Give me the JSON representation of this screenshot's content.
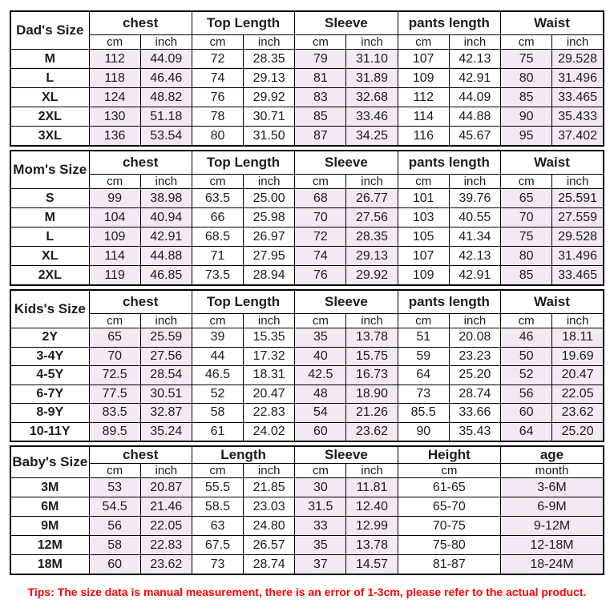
{
  "colors": {
    "shade": "#F3E8F3",
    "border": "#000000",
    "tips_text": "#FF0000"
  },
  "tips": "Tips: The size data is manual measurement, there is an error of 1-3cm, please refer to the actual product.",
  "sections": [
    {
      "label": "Dad's Size",
      "columns": [
        {
          "name": "chest",
          "sub": [
            "cm",
            "inch"
          ],
          "shaded": true
        },
        {
          "name": "Top Length",
          "sub": [
            "cm",
            "inch"
          ],
          "shaded": false
        },
        {
          "name": "Sleeve",
          "sub": [
            "cm",
            "inch"
          ],
          "shaded": true
        },
        {
          "name": "pants length",
          "sub": [
            "cm",
            "inch"
          ],
          "shaded": false
        },
        {
          "name": "Waist",
          "sub": [
            "cm",
            "inch"
          ],
          "shaded": true
        }
      ],
      "rows": [
        {
          "size": "M",
          "values": [
            "112",
            "44.09",
            "72",
            "28.35",
            "79",
            "31.10",
            "107",
            "42.13",
            "75",
            "29.528"
          ]
        },
        {
          "size": "L",
          "values": [
            "118",
            "46.46",
            "74",
            "29.13",
            "81",
            "31.89",
            "109",
            "42.91",
            "80",
            "31.496"
          ]
        },
        {
          "size": "XL",
          "values": [
            "124",
            "48.82",
            "76",
            "29.92",
            "83",
            "32.68",
            "112",
            "44.09",
            "85",
            "33.465"
          ]
        },
        {
          "size": "2XL",
          "values": [
            "130",
            "51.18",
            "78",
            "30.71",
            "85",
            "33.46",
            "114",
            "44.88",
            "90",
            "35.433"
          ]
        },
        {
          "size": "3XL",
          "values": [
            "136",
            "53.54",
            "80",
            "31.50",
            "87",
            "34.25",
            "116",
            "45.67",
            "95",
            "37.402"
          ]
        }
      ]
    },
    {
      "label": "Mom's Size",
      "columns": [
        {
          "name": "chest",
          "sub": [
            "cm",
            "inch"
          ],
          "shaded": true
        },
        {
          "name": "Top Length",
          "sub": [
            "cm",
            "inch"
          ],
          "shaded": false
        },
        {
          "name": "Sleeve",
          "sub": [
            "cm",
            "inch"
          ],
          "shaded": true
        },
        {
          "name": "pants length",
          "sub": [
            "cm",
            "inch"
          ],
          "shaded": false
        },
        {
          "name": "Waist",
          "sub": [
            "cm",
            "inch"
          ],
          "shaded": true
        }
      ],
      "rows": [
        {
          "size": "S",
          "values": [
            "99",
            "38.98",
            "63.5",
            "25.00",
            "68",
            "26.77",
            "101",
            "39.76",
            "65",
            "25.591"
          ]
        },
        {
          "size": "M",
          "values": [
            "104",
            "40.94",
            "66",
            "25.98",
            "70",
            "27.56",
            "103",
            "40.55",
            "70",
            "27.559"
          ]
        },
        {
          "size": "L",
          "values": [
            "109",
            "42.91",
            "68.5",
            "26.97",
            "72",
            "28.35",
            "105",
            "41.34",
            "75",
            "29.528"
          ]
        },
        {
          "size": "XL",
          "values": [
            "114",
            "44.88",
            "71",
            "27.95",
            "74",
            "29.13",
            "107",
            "42.13",
            "80",
            "31.496"
          ]
        },
        {
          "size": "2XL",
          "values": [
            "119",
            "46.85",
            "73.5",
            "28.94",
            "76",
            "29.92",
            "109",
            "42.91",
            "85",
            "33.465"
          ]
        }
      ]
    },
    {
      "label": "Kids's Size",
      "columns": [
        {
          "name": "chest",
          "sub": [
            "cm",
            "inch"
          ],
          "shaded": true
        },
        {
          "name": "Top Length",
          "sub": [
            "cm",
            "inch"
          ],
          "shaded": false
        },
        {
          "name": "Sleeve",
          "sub": [
            "cm",
            "inch"
          ],
          "shaded": true
        },
        {
          "name": "pants length",
          "sub": [
            "cm",
            "inch"
          ],
          "shaded": false
        },
        {
          "name": "Waist",
          "sub": [
            "cm",
            "inch"
          ],
          "shaded": true
        }
      ],
      "rows": [
        {
          "size": "2Y",
          "values": [
            "65",
            "25.59",
            "39",
            "15.35",
            "35",
            "13.78",
            "51",
            "20.08",
            "46",
            "18.11"
          ]
        },
        {
          "size": "3-4Y",
          "values": [
            "70",
            "27.56",
            "44",
            "17.32",
            "40",
            "15.75",
            "59",
            "23.23",
            "50",
            "19.69"
          ]
        },
        {
          "size": "4-5Y",
          "values": [
            "72.5",
            "28.54",
            "46.5",
            "18.31",
            "42.5",
            "16.73",
            "64",
            "25.20",
            "52",
            "20.47"
          ]
        },
        {
          "size": "6-7Y",
          "values": [
            "77.5",
            "30.51",
            "52",
            "20.47",
            "48",
            "18.90",
            "73",
            "28.74",
            "56",
            "22.05"
          ]
        },
        {
          "size": "8-9Y",
          "values": [
            "83.5",
            "32.87",
            "58",
            "22.83",
            "54",
            "21.26",
            "85.5",
            "33.66",
            "60",
            "23.62"
          ]
        },
        {
          "size": "10-11Y",
          "values": [
            "89.5",
            "35.24",
            "61",
            "24.02",
            "60",
            "23.62",
            "90",
            "35.43",
            "64",
            "25.20"
          ]
        }
      ]
    },
    {
      "label": "Baby's Size",
      "columns": [
        {
          "name": "chest",
          "sub": [
            "cm",
            "inch"
          ],
          "shaded": true
        },
        {
          "name": "Length",
          "sub": [
            "cm",
            "inch"
          ],
          "shaded": false
        },
        {
          "name": "Sleeve",
          "sub": [
            "cm",
            "inch"
          ],
          "shaded": true
        },
        {
          "name": "Height",
          "sub": [
            "cm"
          ],
          "shaded": false
        },
        {
          "name": "age",
          "sub": [
            "month"
          ],
          "shaded": true
        }
      ],
      "rows": [
        {
          "size": "3M",
          "values": [
            "53",
            "20.87",
            "55.5",
            "21.85",
            "30",
            "11.81",
            "61-65",
            "3-6M"
          ]
        },
        {
          "size": "6M",
          "values": [
            "54.5",
            "21.46",
            "58.5",
            "23.03",
            "31.5",
            "12.40",
            "65-70",
            "6-9M"
          ]
        },
        {
          "size": "9M",
          "values": [
            "56",
            "22.05",
            "63",
            "24.80",
            "33",
            "12.99",
            "70-75",
            "9-12M"
          ]
        },
        {
          "size": "12M",
          "values": [
            "58",
            "22.83",
            "67.5",
            "26.57",
            "35",
            "13.78",
            "75-80",
            "12-18M"
          ]
        },
        {
          "size": "18M",
          "values": [
            "60",
            "23.62",
            "73",
            "28.74",
            "37",
            "14.57",
            "81-87",
            "18-24M"
          ]
        }
      ]
    }
  ]
}
